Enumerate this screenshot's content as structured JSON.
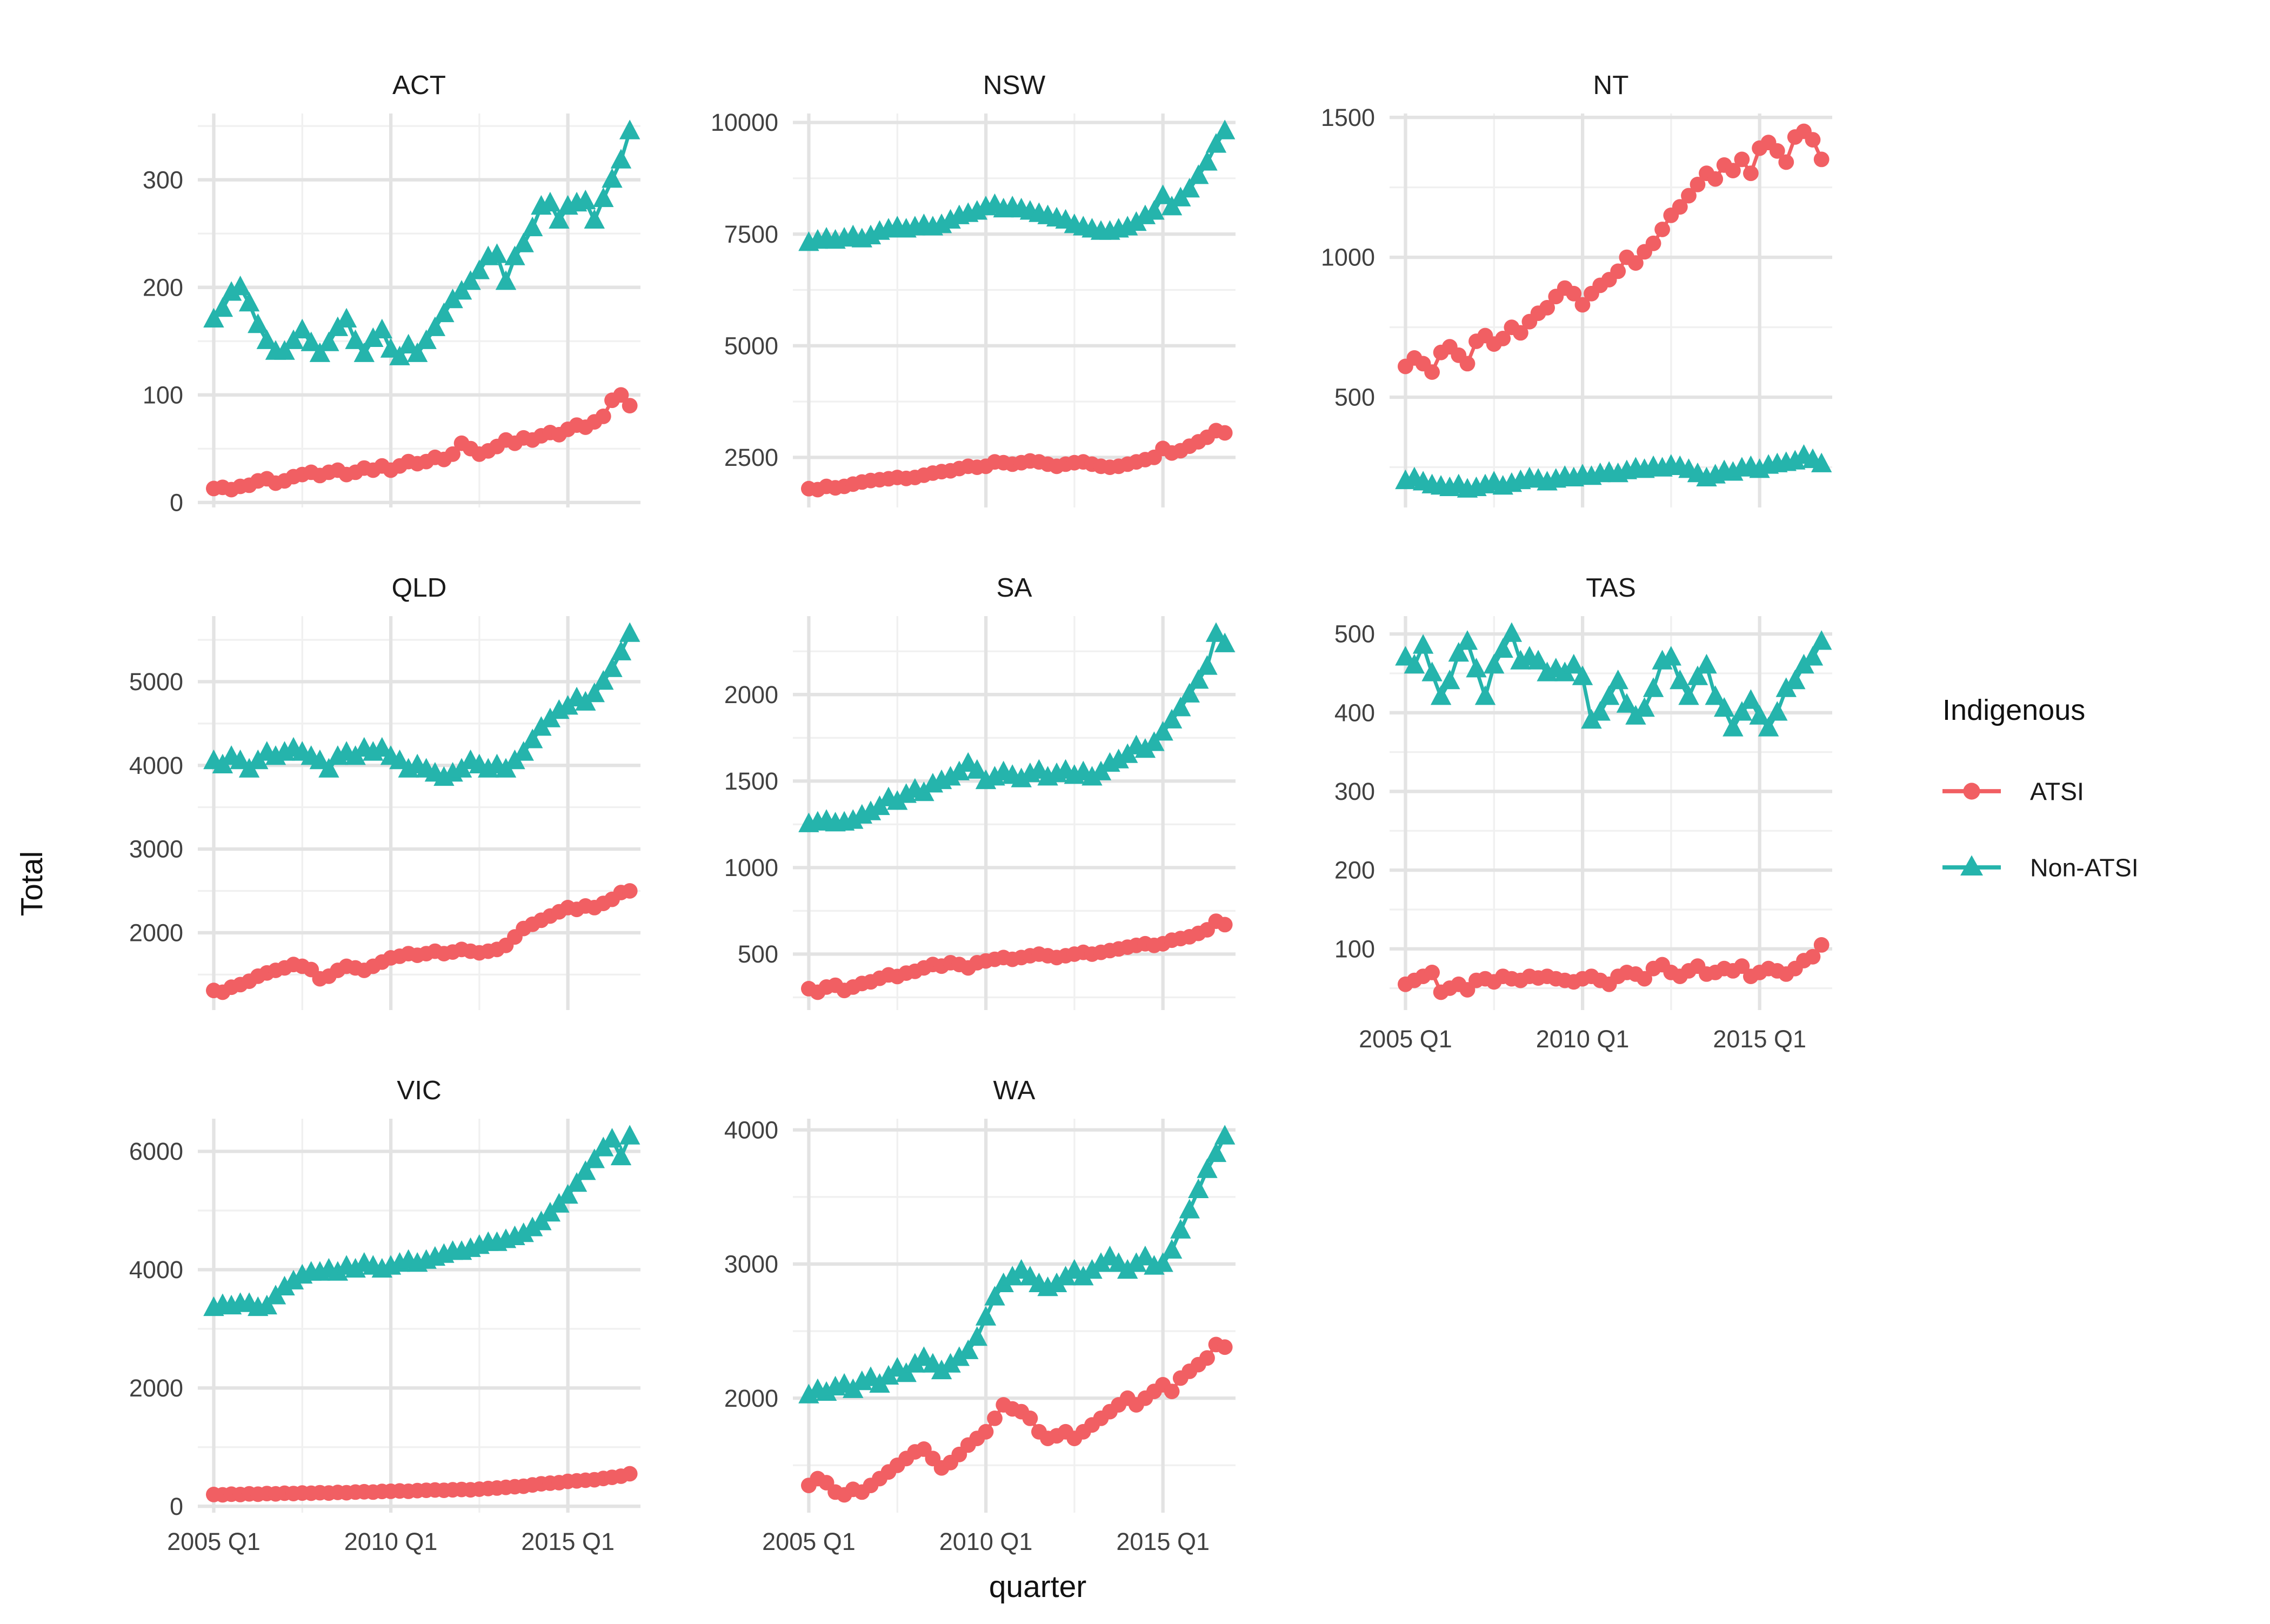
{
  "axes": {
    "x_label": "quarter",
    "y_label": "Total"
  },
  "legend": {
    "title": "Indigenous",
    "entries": [
      {
        "label": "ATSI",
        "marker": "circle-icon",
        "color": "#F15F63"
      },
      {
        "label": "Non-ATSI",
        "marker": "triangle-icon",
        "color": "#25B4AC"
      }
    ]
  },
  "chart_data": {
    "type": "line",
    "title": "",
    "xlabel": "quarter",
    "ylabel": "Total",
    "grid": "on",
    "legend_position": "right",
    "legend_title": "Indigenous",
    "series_names": [
      "ATSI",
      "Non-ATSI"
    ],
    "colors": {
      "ATSI": "#F15F63",
      "Non-ATSI": "#25B4AC"
    },
    "x_start": 2005.0,
    "x_step": 0.25,
    "x_points": 48,
    "x_domain": [
      2004.55,
      2017.05
    ],
    "x_ticks": [
      2005,
      2010,
      2015
    ],
    "x_minor_ticks": [
      2007.5,
      2012.5
    ],
    "x_tick_labels": [
      "2005 Q1",
      "2010 Q1",
      "2015 Q1"
    ],
    "facets": [
      {
        "name": "ACT",
        "yticks": [
          0,
          100,
          200,
          300
        ],
        "y_minor": [
          50,
          150,
          250,
          350
        ],
        "ATSI": [
          13,
          14,
          12,
          15,
          16,
          20,
          22,
          18,
          20,
          24,
          26,
          28,
          25,
          28,
          30,
          26,
          28,
          32,
          30,
          34,
          30,
          34,
          38,
          36,
          38,
          42,
          40,
          45,
          55,
          50,
          45,
          48,
          52,
          58,
          55,
          60,
          58,
          62,
          65,
          63,
          68,
          72,
          70,
          75,
          80,
          95,
          100,
          90
        ],
        "Non-ATSI": [
          170,
          180,
          195,
          200,
          185,
          165,
          150,
          140,
          140,
          150,
          160,
          148,
          138,
          148,
          162,
          170,
          150,
          138,
          152,
          160,
          142,
          135,
          146,
          138,
          150,
          162,
          175,
          188,
          196,
          205,
          215,
          228,
          230,
          205,
          228,
          240,
          255,
          275,
          278,
          262,
          275,
          278,
          280,
          262,
          282,
          300,
          318,
          345
        ]
      },
      {
        "name": "NSW",
        "yticks": [
          2500,
          5000,
          7500,
          10000
        ],
        "y_minor": [
          3750,
          6250,
          8750
        ],
        "ATSI": [
          1800,
          1780,
          1850,
          1820,
          1850,
          1900,
          1950,
          1980,
          2000,
          2020,
          2050,
          2030,
          2050,
          2100,
          2150,
          2180,
          2200,
          2250,
          2300,
          2280,
          2300,
          2400,
          2380,
          2350,
          2380,
          2420,
          2400,
          2350,
          2300,
          2350,
          2380,
          2400,
          2350,
          2300,
          2280,
          2300,
          2350,
          2400,
          2450,
          2500,
          2700,
          2600,
          2650,
          2750,
          2850,
          2950,
          3100,
          3050
        ],
        "Non-ATSI": [
          7300,
          7350,
          7400,
          7350,
          7400,
          7450,
          7380,
          7450,
          7550,
          7600,
          7650,
          7600,
          7650,
          7700,
          7650,
          7700,
          7800,
          7900,
          7950,
          8000,
          8100,
          8150,
          8050,
          8100,
          8050,
          8000,
          7950,
          7900,
          7850,
          7800,
          7700,
          7650,
          7600,
          7550,
          7550,
          7600,
          7650,
          7750,
          7900,
          8000,
          8350,
          8100,
          8300,
          8500,
          8800,
          9100,
          9500,
          9800
        ]
      },
      {
        "name": "NT",
        "yticks": [
          500,
          1000,
          1500
        ],
        "y_minor": [
          250,
          750,
          1250
        ],
        "ATSI": [
          610,
          640,
          620,
          590,
          660,
          680,
          650,
          620,
          700,
          720,
          690,
          710,
          750,
          730,
          770,
          800,
          820,
          860,
          890,
          870,
          830,
          870,
          900,
          920,
          950,
          1000,
          980,
          1020,
          1050,
          1100,
          1150,
          1180,
          1220,
          1260,
          1300,
          1280,
          1330,
          1310,
          1350,
          1300,
          1390,
          1410,
          1380,
          1340,
          1430,
          1450,
          1420,
          1350
        ],
        "Non-ATSI": [
          200,
          210,
          195,
          185,
          180,
          175,
          185,
          170,
          175,
          185,
          195,
          180,
          190,
          200,
          210,
          205,
          195,
          205,
          215,
          210,
          220,
          215,
          225,
          230,
          225,
          235,
          245,
          240,
          250,
          245,
          255,
          250,
          240,
          225,
          210,
          220,
          235,
          230,
          245,
          250,
          240,
          255,
          260,
          265,
          270,
          290,
          275,
          260
        ]
      },
      {
        "name": "QLD",
        "yticks": [
          2000,
          3000,
          4000,
          5000
        ],
        "y_minor": [
          1500,
          2500,
          3500,
          4500,
          5500
        ],
        "ATSI": [
          1310,
          1290,
          1350,
          1380,
          1420,
          1480,
          1520,
          1550,
          1580,
          1620,
          1600,
          1560,
          1450,
          1480,
          1550,
          1600,
          1580,
          1550,
          1600,
          1650,
          1700,
          1720,
          1750,
          1730,
          1750,
          1780,
          1750,
          1770,
          1800,
          1780,
          1760,
          1780,
          1800,
          1850,
          1950,
          2050,
          2100,
          2150,
          2200,
          2250,
          2300,
          2280,
          2320,
          2300,
          2350,
          2400,
          2480,
          2500
        ],
        "Non-ATSI": [
          4050,
          4000,
          4100,
          4050,
          3950,
          4050,
          4150,
          4100,
          4150,
          4200,
          4150,
          4100,
          4050,
          3950,
          4100,
          4150,
          4100,
          4200,
          4150,
          4200,
          4100,
          4050,
          3950,
          4000,
          3950,
          3900,
          3850,
          3900,
          3950,
          4050,
          4000,
          3950,
          4000,
          3950,
          4050,
          4150,
          4300,
          4450,
          4550,
          4650,
          4700,
          4800,
          4750,
          4850,
          5000,
          5150,
          5350,
          5570
        ]
      },
      {
        "name": "SA",
        "yticks": [
          500,
          1000,
          1500,
          2000
        ],
        "y_minor": [
          250,
          750,
          1250,
          1750,
          2250
        ],
        "ATSI": [
          300,
          280,
          310,
          320,
          290,
          310,
          330,
          340,
          360,
          380,
          370,
          390,
          400,
          420,
          440,
          430,
          450,
          440,
          420,
          450,
          460,
          470,
          480,
          470,
          480,
          490,
          500,
          490,
          480,
          490,
          500,
          510,
          500,
          510,
          520,
          530,
          540,
          550,
          560,
          550,
          560,
          580,
          590,
          600,
          620,
          640,
          690,
          670
        ],
        "Non-ATSI": [
          1250,
          1260,
          1270,
          1255,
          1260,
          1270,
          1300,
          1320,
          1350,
          1400,
          1380,
          1420,
          1450,
          1430,
          1480,
          1500,
          1520,
          1550,
          1600,
          1560,
          1500,
          1520,
          1550,
          1530,
          1510,
          1540,
          1560,
          1520,
          1540,
          1560,
          1530,
          1550,
          1520,
          1550,
          1600,
          1620,
          1650,
          1700,
          1680,
          1720,
          1780,
          1850,
          1920,
          2000,
          2080,
          2160,
          2350,
          2290
        ]
      },
      {
        "name": "TAS",
        "yticks": [
          100,
          200,
          300,
          400,
          500
        ],
        "y_minor": [
          50,
          150,
          250,
          350,
          450
        ],
        "ATSI": [
          55,
          60,
          65,
          70,
          45,
          50,
          55,
          48,
          60,
          62,
          58,
          65,
          62,
          60,
          65,
          63,
          65,
          62,
          60,
          58,
          62,
          65,
          60,
          55,
          65,
          70,
          68,
          62,
          75,
          80,
          70,
          65,
          72,
          78,
          68,
          70,
          75,
          72,
          78,
          65,
          70,
          75,
          72,
          68,
          75,
          85,
          90,
          105
        ],
        "Non-ATSI": [
          470,
          460,
          485,
          450,
          420,
          440,
          475,
          490,
          455,
          420,
          460,
          480,
          500,
          465,
          470,
          465,
          450,
          455,
          450,
          460,
          445,
          390,
          400,
          420,
          440,
          410,
          395,
          405,
          430,
          465,
          470,
          440,
          420,
          445,
          460,
          420,
          405,
          380,
          400,
          415,
          395,
          380,
          400,
          430,
          440,
          460,
          470,
          490
        ]
      },
      {
        "name": "VIC",
        "yticks": [
          0,
          2000,
          4000,
          6000
        ],
        "y_minor": [
          1000,
          3000,
          5000
        ],
        "ATSI": [
          200,
          195,
          205,
          200,
          210,
          205,
          215,
          210,
          220,
          215,
          225,
          220,
          230,
          225,
          235,
          230,
          240,
          245,
          240,
          250,
          255,
          260,
          255,
          265,
          270,
          275,
          270,
          280,
          285,
          280,
          290,
          300,
          310,
          320,
          330,
          340,
          360,
          380,
          390,
          400,
          420,
          430,
          440,
          450,
          470,
          490,
          510,
          550
        ],
        "Non-ATSI": [
          3350,
          3400,
          3380,
          3420,
          3420,
          3350,
          3380,
          3550,
          3700,
          3800,
          3900,
          3950,
          3950,
          4000,
          3950,
          4050,
          4000,
          4100,
          4050,
          4000,
          4050,
          4100,
          4150,
          4100,
          4150,
          4200,
          4250,
          4300,
          4300,
          4350,
          4400,
          4450,
          4450,
          4500,
          4550,
          4600,
          4700,
          4800,
          4950,
          5100,
          5250,
          5450,
          5650,
          5850,
          6050,
          6200,
          5900,
          6250
        ]
      },
      {
        "name": "WA",
        "yticks": [
          2000,
          3000,
          4000
        ],
        "y_minor": [
          1500,
          2500,
          3500
        ],
        "ATSI": [
          1350,
          1400,
          1370,
          1300,
          1280,
          1320,
          1300,
          1350,
          1400,
          1450,
          1500,
          1550,
          1600,
          1620,
          1550,
          1480,
          1520,
          1580,
          1650,
          1700,
          1750,
          1850,
          1950,
          1920,
          1900,
          1850,
          1750,
          1700,
          1720,
          1750,
          1700,
          1750,
          1800,
          1850,
          1900,
          1950,
          2000,
          1950,
          2000,
          2050,
          2100,
          2050,
          2150,
          2200,
          2250,
          2300,
          2400,
          2380
        ],
        "Non-ATSI": [
          2020,
          2060,
          2040,
          2080,
          2100,
          2060,
          2120,
          2150,
          2100,
          2160,
          2220,
          2180,
          2250,
          2300,
          2250,
          2200,
          2250,
          2300,
          2350,
          2450,
          2600,
          2750,
          2850,
          2900,
          2950,
          2900,
          2850,
          2820,
          2850,
          2900,
          2950,
          2900,
          2950,
          3000,
          3050,
          3000,
          2950,
          3000,
          3050,
          2980,
          3000,
          3100,
          3250,
          3400,
          3550,
          3700,
          3820,
          3950
        ]
      }
    ]
  }
}
